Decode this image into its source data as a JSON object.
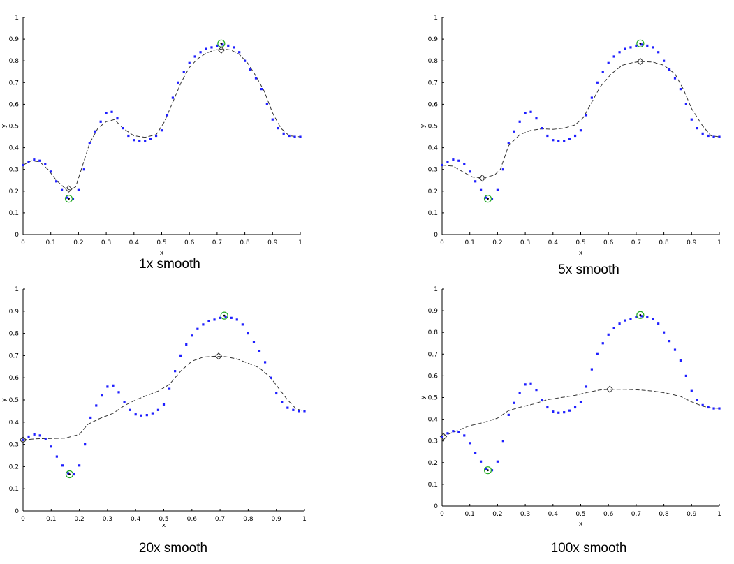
{
  "chart_data": [
    {
      "type": "scatter",
      "title": "1x smooth",
      "xlabel": "x",
      "ylabel": "y",
      "xlim": [
        0,
        1
      ],
      "ylim": [
        0,
        1
      ],
      "xticks": [
        "0",
        "0.1",
        "0.2",
        "0.3",
        "0.4",
        "0.5",
        "0.6",
        "0.7",
        "0.8",
        "0.9",
        "1"
      ],
      "yticks": [
        "0",
        "0.1",
        "0.2",
        "0.3",
        "0.4",
        "0.5",
        "0.6",
        "0.7",
        "0.8",
        "0.9",
        "1"
      ],
      "grid": false,
      "points_x": [
        0.0,
        0.02,
        0.04,
        0.06,
        0.08,
        0.1,
        0.12,
        0.14,
        0.16,
        0.18,
        0.2,
        0.22,
        0.24,
        0.26,
        0.28,
        0.3,
        0.32,
        0.34,
        0.36,
        0.38,
        0.4,
        0.42,
        0.44,
        0.46,
        0.48,
        0.5,
        0.52,
        0.54,
        0.56,
        0.58,
        0.6,
        0.62,
        0.64,
        0.66,
        0.68,
        0.7,
        0.72,
        0.74,
        0.76,
        0.78,
        0.8,
        0.82,
        0.84,
        0.86,
        0.88,
        0.9,
        0.92,
        0.94,
        0.96,
        0.98,
        1.0
      ],
      "points_y": [
        0.32,
        0.335,
        0.345,
        0.34,
        0.325,
        0.29,
        0.245,
        0.205,
        0.17,
        0.165,
        0.205,
        0.3,
        0.42,
        0.475,
        0.52,
        0.56,
        0.565,
        0.535,
        0.49,
        0.455,
        0.435,
        0.43,
        0.432,
        0.44,
        0.455,
        0.48,
        0.55,
        0.63,
        0.7,
        0.75,
        0.79,
        0.82,
        0.84,
        0.855,
        0.862,
        0.87,
        0.875,
        0.87,
        0.862,
        0.84,
        0.8,
        0.76,
        0.72,
        0.67,
        0.6,
        0.53,
        0.49,
        0.465,
        0.455,
        0.45,
        0.45
      ],
      "smooth_x": [
        0.0,
        0.03,
        0.06,
        0.09,
        0.12,
        0.15,
        0.17,
        0.19,
        0.21,
        0.24,
        0.27,
        0.3,
        0.33,
        0.36,
        0.4,
        0.44,
        0.48,
        0.51,
        0.54,
        0.57,
        0.6,
        0.63,
        0.66,
        0.69,
        0.72,
        0.75,
        0.78,
        0.81,
        0.84,
        0.87,
        0.9,
        0.93,
        0.96,
        1.0
      ],
      "smooth_y": [
        0.32,
        0.34,
        0.335,
        0.3,
        0.25,
        0.215,
        0.205,
        0.22,
        0.3,
        0.42,
        0.49,
        0.52,
        0.53,
        0.49,
        0.455,
        0.448,
        0.46,
        0.52,
        0.61,
        0.7,
        0.77,
        0.81,
        0.835,
        0.85,
        0.855,
        0.85,
        0.83,
        0.79,
        0.73,
        0.66,
        0.56,
        0.49,
        0.455,
        0.45
      ],
      "max_true": [
        0.715,
        0.88
      ],
      "min_true": [
        0.165,
        0.165
      ],
      "max_est": [
        0.715,
        0.85
      ],
      "min_est": [
        0.165,
        0.21
      ]
    },
    {
      "type": "scatter",
      "title": "5x smooth",
      "xlabel": "x",
      "ylabel": "y",
      "xlim": [
        0,
        1
      ],
      "ylim": [
        0,
        1
      ],
      "xticks": [
        "0",
        "0.1",
        "0.2",
        "0.3",
        "0.4",
        "0.5",
        "0.6",
        "0.7",
        "0.8",
        "0.9",
        "1"
      ],
      "yticks": [
        "0",
        "0.1",
        "0.2",
        "0.3",
        "0.4",
        "0.5",
        "0.6",
        "0.7",
        "0.8",
        "0.9",
        "1"
      ],
      "grid": false,
      "points_x": [
        0.0,
        0.02,
        0.04,
        0.06,
        0.08,
        0.1,
        0.12,
        0.14,
        0.16,
        0.18,
        0.2,
        0.22,
        0.24,
        0.26,
        0.28,
        0.3,
        0.32,
        0.34,
        0.36,
        0.38,
        0.4,
        0.42,
        0.44,
        0.46,
        0.48,
        0.5,
        0.52,
        0.54,
        0.56,
        0.58,
        0.6,
        0.62,
        0.64,
        0.66,
        0.68,
        0.7,
        0.72,
        0.74,
        0.76,
        0.78,
        0.8,
        0.82,
        0.84,
        0.86,
        0.88,
        0.9,
        0.92,
        0.94,
        0.96,
        0.98,
        1.0
      ],
      "points_y": [
        0.32,
        0.335,
        0.345,
        0.34,
        0.325,
        0.29,
        0.245,
        0.205,
        0.17,
        0.165,
        0.205,
        0.3,
        0.42,
        0.475,
        0.52,
        0.56,
        0.565,
        0.535,
        0.49,
        0.455,
        0.435,
        0.43,
        0.432,
        0.44,
        0.455,
        0.48,
        0.55,
        0.63,
        0.7,
        0.75,
        0.79,
        0.82,
        0.84,
        0.855,
        0.862,
        0.87,
        0.875,
        0.87,
        0.862,
        0.84,
        0.8,
        0.76,
        0.72,
        0.67,
        0.6,
        0.53,
        0.49,
        0.465,
        0.455,
        0.45,
        0.45
      ],
      "smooth_x": [
        0.0,
        0.04,
        0.08,
        0.11,
        0.15,
        0.19,
        0.21,
        0.24,
        0.28,
        0.32,
        0.36,
        0.4,
        0.44,
        0.48,
        0.51,
        0.54,
        0.57,
        0.61,
        0.65,
        0.69,
        0.72,
        0.76,
        0.8,
        0.84,
        0.87,
        0.9,
        0.94,
        0.97,
        1.0
      ],
      "smooth_y": [
        0.32,
        0.315,
        0.285,
        0.265,
        0.26,
        0.275,
        0.3,
        0.41,
        0.46,
        0.48,
        0.487,
        0.485,
        0.49,
        0.505,
        0.54,
        0.61,
        0.68,
        0.74,
        0.78,
        0.793,
        0.797,
        0.795,
        0.78,
        0.74,
        0.67,
        0.58,
        0.5,
        0.455,
        0.45
      ],
      "max_true": [
        0.715,
        0.88
      ],
      "min_true": [
        0.165,
        0.165
      ],
      "max_est": [
        0.715,
        0.797
      ],
      "min_est": [
        0.145,
        0.26
      ]
    },
    {
      "type": "scatter",
      "title": "20x smooth",
      "xlabel": "x",
      "ylabel": "y",
      "xlim": [
        0,
        1
      ],
      "ylim": [
        0,
        1
      ],
      "xticks": [
        "0",
        "0.1",
        "0.2",
        "0.3",
        "0.4",
        "0.5",
        "0.6",
        "0.7",
        "0.8",
        "0.9",
        "1"
      ],
      "yticks": [
        "0",
        "0.1",
        "0.2",
        "0.3",
        "0.4",
        "0.5",
        "0.6",
        "0.7",
        "0.8",
        "0.9",
        "1"
      ],
      "grid": false,
      "points_x": [
        0.0,
        0.02,
        0.04,
        0.06,
        0.08,
        0.1,
        0.12,
        0.14,
        0.16,
        0.18,
        0.2,
        0.22,
        0.24,
        0.26,
        0.28,
        0.3,
        0.32,
        0.34,
        0.36,
        0.38,
        0.4,
        0.42,
        0.44,
        0.46,
        0.48,
        0.5,
        0.52,
        0.54,
        0.56,
        0.58,
        0.6,
        0.62,
        0.64,
        0.66,
        0.68,
        0.7,
        0.72,
        0.74,
        0.76,
        0.78,
        0.8,
        0.82,
        0.84,
        0.86,
        0.88,
        0.9,
        0.92,
        0.94,
        0.96,
        0.98,
        1.0
      ],
      "points_y": [
        0.32,
        0.335,
        0.345,
        0.34,
        0.325,
        0.29,
        0.245,
        0.205,
        0.17,
        0.165,
        0.205,
        0.3,
        0.42,
        0.475,
        0.52,
        0.56,
        0.565,
        0.535,
        0.49,
        0.455,
        0.435,
        0.43,
        0.432,
        0.44,
        0.455,
        0.48,
        0.55,
        0.63,
        0.7,
        0.75,
        0.79,
        0.82,
        0.84,
        0.855,
        0.862,
        0.87,
        0.875,
        0.87,
        0.862,
        0.84,
        0.8,
        0.76,
        0.72,
        0.67,
        0.6,
        0.53,
        0.49,
        0.465,
        0.455,
        0.45,
        0.45
      ],
      "smooth_x": [
        0.0,
        0.05,
        0.1,
        0.15,
        0.2,
        0.23,
        0.27,
        0.32,
        0.36,
        0.4,
        0.44,
        0.48,
        0.52,
        0.56,
        0.6,
        0.64,
        0.68,
        0.72,
        0.76,
        0.8,
        0.84,
        0.88,
        0.91,
        0.94,
        0.97,
        1.0
      ],
      "smooth_y": [
        0.32,
        0.325,
        0.326,
        0.328,
        0.345,
        0.39,
        0.415,
        0.44,
        0.475,
        0.5,
        0.52,
        0.54,
        0.57,
        0.63,
        0.675,
        0.693,
        0.697,
        0.695,
        0.685,
        0.665,
        0.645,
        0.6,
        0.55,
        0.5,
        0.46,
        0.45
      ],
      "max_true": [
        0.715,
        0.88
      ],
      "min_true": [
        0.165,
        0.165
      ],
      "max_est": [
        0.695,
        0.697
      ],
      "min_est": [
        0.0,
        0.32
      ]
    },
    {
      "type": "scatter",
      "title": "100x smooth",
      "xlabel": "x",
      "ylabel": "y",
      "xlim": [
        0,
        1
      ],
      "ylim": [
        0,
        1
      ],
      "xticks": [
        "0",
        "0.1",
        "0.2",
        "0.3",
        "0.4",
        "0.5",
        "0.6",
        "0.7",
        "0.8",
        "0.9",
        "1"
      ],
      "yticks": [
        "0",
        "0.1",
        "0.2",
        "0.3",
        "0.4",
        "0.5",
        "0.6",
        "0.7",
        "0.8",
        "0.9",
        "1"
      ],
      "grid": false,
      "points_x": [
        0.0,
        0.02,
        0.04,
        0.06,
        0.08,
        0.1,
        0.12,
        0.14,
        0.16,
        0.18,
        0.2,
        0.22,
        0.24,
        0.26,
        0.28,
        0.3,
        0.32,
        0.34,
        0.36,
        0.38,
        0.4,
        0.42,
        0.44,
        0.46,
        0.48,
        0.5,
        0.52,
        0.54,
        0.56,
        0.58,
        0.6,
        0.62,
        0.64,
        0.66,
        0.68,
        0.7,
        0.72,
        0.74,
        0.76,
        0.78,
        0.8,
        0.82,
        0.84,
        0.86,
        0.88,
        0.9,
        0.92,
        0.94,
        0.96,
        0.98,
        1.0
      ],
      "points_y": [
        0.32,
        0.335,
        0.345,
        0.34,
        0.325,
        0.29,
        0.245,
        0.205,
        0.17,
        0.165,
        0.205,
        0.3,
        0.42,
        0.475,
        0.52,
        0.56,
        0.565,
        0.535,
        0.49,
        0.455,
        0.435,
        0.43,
        0.432,
        0.44,
        0.455,
        0.48,
        0.55,
        0.63,
        0.7,
        0.75,
        0.79,
        0.82,
        0.84,
        0.855,
        0.862,
        0.87,
        0.875,
        0.87,
        0.862,
        0.84,
        0.8,
        0.76,
        0.72,
        0.67,
        0.6,
        0.53,
        0.49,
        0.465,
        0.455,
        0.45,
        0.45
      ],
      "smooth_x": [
        0.0,
        0.05,
        0.1,
        0.15,
        0.2,
        0.24,
        0.28,
        0.33,
        0.38,
        0.43,
        0.48,
        0.53,
        0.57,
        0.61,
        0.66,
        0.71,
        0.76,
        0.81,
        0.86,
        0.9,
        0.94,
        0.97,
        1.0
      ],
      "smooth_y": [
        0.32,
        0.345,
        0.37,
        0.385,
        0.405,
        0.44,
        0.455,
        0.47,
        0.49,
        0.5,
        0.51,
        0.525,
        0.535,
        0.538,
        0.538,
        0.535,
        0.53,
        0.52,
        0.505,
        0.48,
        0.46,
        0.452,
        0.45
      ],
      "max_true": [
        0.715,
        0.88
      ],
      "min_true": [
        0.165,
        0.165
      ],
      "max_est": [
        0.605,
        0.538
      ],
      "min_est": [
        0.005,
        0.32
      ]
    }
  ]
}
